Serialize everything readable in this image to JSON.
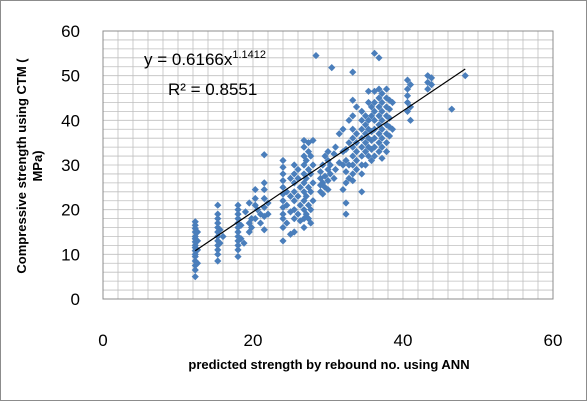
{
  "chart_data": {
    "type": "scatter",
    "title": "",
    "xlabel": "predicted strength by rebound no. using ANN",
    "ylabel_line1": "Compressive strength using CTM (",
    "ylabel_line2": "MPa)",
    "xlim": [
      0,
      60
    ],
    "ylim": [
      0,
      60
    ],
    "x_ticks": [
      "0",
      "20",
      "40",
      "60"
    ],
    "y_ticks": [
      "0",
      "10",
      "20",
      "30",
      "40",
      "50",
      "60"
    ],
    "grid": true,
    "point_color": "#4a7ebb",
    "trendline": {
      "type": "power",
      "coefficient": 0.6166,
      "exponent": 1.1412,
      "x_range": [
        12.3,
        48.3
      ],
      "equation_prefix": "y = 0.6166x",
      "equation_exponent": "1.1412",
      "r_squared_label": "R² = 0.8551",
      "color": "#000000"
    },
    "points": [
      [
        12.3,
        5
      ],
      [
        12.3,
        6.5
      ],
      [
        12.3,
        7.5
      ],
      [
        12.3,
        8.5
      ],
      [
        12.3,
        9.5
      ],
      [
        12.3,
        10
      ],
      [
        12.3,
        10.8
      ],
      [
        12.3,
        11.5
      ],
      [
        12.3,
        12
      ],
      [
        12.3,
        12.8
      ],
      [
        12.3,
        13.5
      ],
      [
        12.3,
        14
      ],
      [
        12.3,
        15
      ],
      [
        12.3,
        15.8
      ],
      [
        12.3,
        16.5
      ],
      [
        12.3,
        17.3
      ],
      [
        12.6,
        8
      ],
      [
        12.6,
        11
      ],
      [
        12.6,
        13
      ],
      [
        12.6,
        15
      ],
      [
        15.3,
        8.5
      ],
      [
        15.3,
        10
      ],
      [
        15.3,
        11
      ],
      [
        15.3,
        12
      ],
      [
        15.3,
        13
      ],
      [
        15.3,
        14
      ],
      [
        15.3,
        15
      ],
      [
        15.3,
        16
      ],
      [
        15.3,
        17
      ],
      [
        15.3,
        18
      ],
      [
        15.3,
        19
      ],
      [
        15.3,
        21
      ],
      [
        15.6,
        12.5
      ],
      [
        15.6,
        15.5
      ],
      [
        16,
        14
      ],
      [
        18,
        9.5
      ],
      [
        18,
        11
      ],
      [
        18,
        12
      ],
      [
        18,
        13
      ],
      [
        18,
        14
      ],
      [
        18,
        15
      ],
      [
        18,
        16
      ],
      [
        18,
        17
      ],
      [
        18,
        18
      ],
      [
        18,
        19
      ],
      [
        18,
        20
      ],
      [
        18,
        21
      ],
      [
        18.4,
        13.5
      ],
      [
        18.4,
        16.5
      ],
      [
        18.8,
        12.5
      ],
      [
        19,
        19.5
      ],
      [
        19.5,
        15
      ],
      [
        19.5,
        17
      ],
      [
        19.5,
        21.5
      ],
      [
        19.8,
        16
      ],
      [
        19.8,
        18
      ],
      [
        20.3,
        18
      ],
      [
        20.3,
        21
      ],
      [
        20.3,
        22.5
      ],
      [
        20.3,
        24.5
      ],
      [
        20.6,
        20
      ],
      [
        21,
        17
      ],
      [
        21,
        19
      ],
      [
        21.5,
        15.5
      ],
      [
        21.5,
        18.5
      ],
      [
        21.5,
        20.5
      ],
      [
        21.5,
        22.5
      ],
      [
        21.5,
        24.5
      ],
      [
        21.5,
        26
      ],
      [
        21.5,
        32.3
      ],
      [
        22,
        19
      ],
      [
        22,
        21.5
      ],
      [
        24,
        13
      ],
      [
        24,
        16
      ],
      [
        24,
        18
      ],
      [
        24,
        19
      ],
      [
        24,
        20.5
      ],
      [
        24,
        22
      ],
      [
        24,
        23.5
      ],
      [
        24,
        25
      ],
      [
        24,
        26.5
      ],
      [
        24,
        28
      ],
      [
        24,
        29.5
      ],
      [
        24,
        31
      ],
      [
        24.5,
        17
      ],
      [
        24.5,
        21
      ],
      [
        24.5,
        24
      ],
      [
        25,
        14.5
      ],
      [
        25,
        19.5
      ],
      [
        25,
        23
      ],
      [
        25,
        27
      ],
      [
        25.5,
        15
      ],
      [
        25.5,
        18
      ],
      [
        25.5,
        20
      ],
      [
        25.5,
        22
      ],
      [
        25.5,
        24
      ],
      [
        25.5,
        26
      ],
      [
        25.5,
        28
      ],
      [
        25.5,
        30
      ],
      [
        26,
        19
      ],
      [
        26,
        23
      ],
      [
        26,
        27
      ],
      [
        26,
        29
      ],
      [
        26.3,
        17.5
      ],
      [
        26.3,
        21
      ],
      [
        26.3,
        25
      ],
      [
        26.8,
        16
      ],
      [
        26.8,
        18
      ],
      [
        26.8,
        20
      ],
      [
        26.8,
        22
      ],
      [
        26.8,
        24
      ],
      [
        26.8,
        26
      ],
      [
        26.8,
        28
      ],
      [
        26.8,
        30
      ],
      [
        26.8,
        32
      ],
      [
        26.8,
        34
      ],
      [
        26.8,
        35.5
      ],
      [
        27.1,
        19
      ],
      [
        27.1,
        23
      ],
      [
        27.1,
        27
      ],
      [
        27.1,
        31
      ],
      [
        27.4,
        18
      ],
      [
        27.4,
        21
      ],
      [
        27.4,
        25
      ],
      [
        27.4,
        29
      ],
      [
        27.4,
        33
      ],
      [
        27.4,
        35
      ],
      [
        27.7,
        17
      ],
      [
        27.7,
        20
      ],
      [
        27.7,
        24
      ],
      [
        27.7,
        28
      ],
      [
        27.7,
        32
      ],
      [
        28,
        22
      ],
      [
        28,
        26
      ],
      [
        28,
        30
      ],
      [
        28,
        35.5
      ],
      [
        28.4,
        54.5
      ],
      [
        29,
        24
      ],
      [
        29,
        25.5
      ],
      [
        29,
        27
      ],
      [
        29,
        28.5
      ],
      [
        29.3,
        23.5
      ],
      [
        29.3,
        26
      ],
      [
        29.3,
        30
      ],
      [
        29.6,
        25
      ],
      [
        29.6,
        27.5
      ],
      [
        29.6,
        32
      ],
      [
        30,
        24.5
      ],
      [
        30,
        26.5
      ],
      [
        30,
        29
      ],
      [
        30,
        31
      ],
      [
        30,
        33
      ],
      [
        30.3,
        28
      ],
      [
        30.3,
        30
      ],
      [
        30.5,
        51.8
      ],
      [
        30.8,
        27
      ],
      [
        30.8,
        32.5
      ],
      [
        31,
        29
      ],
      [
        31,
        34
      ],
      [
        31.5,
        30.5
      ],
      [
        31.5,
        37
      ],
      [
        32,
        24.5
      ],
      [
        32,
        30
      ],
      [
        32,
        33
      ],
      [
        32,
        38
      ],
      [
        32.4,
        19
      ],
      [
        32.4,
        21.5
      ],
      [
        32.4,
        26
      ],
      [
        32.4,
        28.5
      ],
      [
        32.4,
        31
      ],
      [
        32.4,
        33.5
      ],
      [
        32.8,
        27
      ],
      [
        32.8,
        30
      ],
      [
        32.8,
        35
      ],
      [
        32.8,
        40
      ],
      [
        33.3,
        26.5
      ],
      [
        33.3,
        28
      ],
      [
        33.3,
        30
      ],
      [
        33.3,
        32
      ],
      [
        33.3,
        34
      ],
      [
        33.3,
        36
      ],
      [
        33.3,
        38
      ],
      [
        33.3,
        41
      ],
      [
        33.3,
        44.5
      ],
      [
        33.3,
        50.8
      ],
      [
        33.8,
        29
      ],
      [
        33.8,
        31
      ],
      [
        33.8,
        33
      ],
      [
        33.8,
        35
      ],
      [
        33.8,
        37
      ],
      [
        33.8,
        43
      ],
      [
        34.5,
        24
      ],
      [
        34.5,
        28
      ],
      [
        34.5,
        30
      ],
      [
        34.5,
        32
      ],
      [
        34.5,
        34
      ],
      [
        34.5,
        36
      ],
      [
        34.5,
        38
      ],
      [
        34.5,
        40
      ],
      [
        34.5,
        42
      ],
      [
        35,
        30
      ],
      [
        35,
        33
      ],
      [
        35,
        35
      ],
      [
        35,
        37
      ],
      [
        35,
        39
      ],
      [
        35,
        41
      ],
      [
        35.4,
        32
      ],
      [
        35.4,
        34
      ],
      [
        35.4,
        36
      ],
      [
        35.4,
        38
      ],
      [
        35.4,
        40
      ],
      [
        35.4,
        44
      ],
      [
        35.4,
        46.5
      ],
      [
        35.8,
        31
      ],
      [
        35.8,
        33.5
      ],
      [
        35.8,
        35.5
      ],
      [
        35.8,
        37.5
      ],
      [
        35.8,
        41
      ],
      [
        35.8,
        43
      ],
      [
        36.2,
        32
      ],
      [
        36.2,
        34
      ],
      [
        36.2,
        36
      ],
      [
        36.2,
        38
      ],
      [
        36.2,
        40
      ],
      [
        36.2,
        42
      ],
      [
        36.2,
        44
      ],
      [
        36.2,
        46.5
      ],
      [
        36.2,
        55
      ],
      [
        36.8,
        33
      ],
      [
        36.8,
        35
      ],
      [
        36.8,
        37
      ],
      [
        36.8,
        39
      ],
      [
        36.8,
        41
      ],
      [
        36.8,
        43
      ],
      [
        36.8,
        45
      ],
      [
        36.8,
        47
      ],
      [
        36.8,
        54
      ],
      [
        37.2,
        31.5
      ],
      [
        37.2,
        34
      ],
      [
        37.2,
        36
      ],
      [
        37.2,
        38
      ],
      [
        37.2,
        40
      ],
      [
        37.2,
        42
      ],
      [
        37.2,
        44
      ],
      [
        37.2,
        46
      ],
      [
        37.8,
        33
      ],
      [
        37.8,
        35
      ],
      [
        37.8,
        37
      ],
      [
        37.8,
        39
      ],
      [
        37.8,
        41
      ],
      [
        37.8,
        43
      ],
      [
        37.8,
        45
      ],
      [
        37.8,
        47
      ],
      [
        38.2,
        36.5
      ],
      [
        38.2,
        38.5
      ],
      [
        38.2,
        40.5
      ],
      [
        38.2,
        42.5
      ],
      [
        38.2,
        44.5
      ],
      [
        38.6,
        38
      ],
      [
        38.6,
        44
      ],
      [
        40.6,
        42
      ],
      [
        40.6,
        44
      ],
      [
        40.6,
        45.5
      ],
      [
        40.6,
        47
      ],
      [
        40.6,
        49
      ],
      [
        41,
        40
      ],
      [
        41,
        43
      ],
      [
        41,
        48
      ],
      [
        43.3,
        47
      ],
      [
        43.3,
        48.5
      ],
      [
        43.3,
        50
      ],
      [
        43.8,
        48
      ],
      [
        43.8,
        49.5
      ],
      [
        46.5,
        42.5
      ],
      [
        48.3,
        50
      ]
    ]
  }
}
